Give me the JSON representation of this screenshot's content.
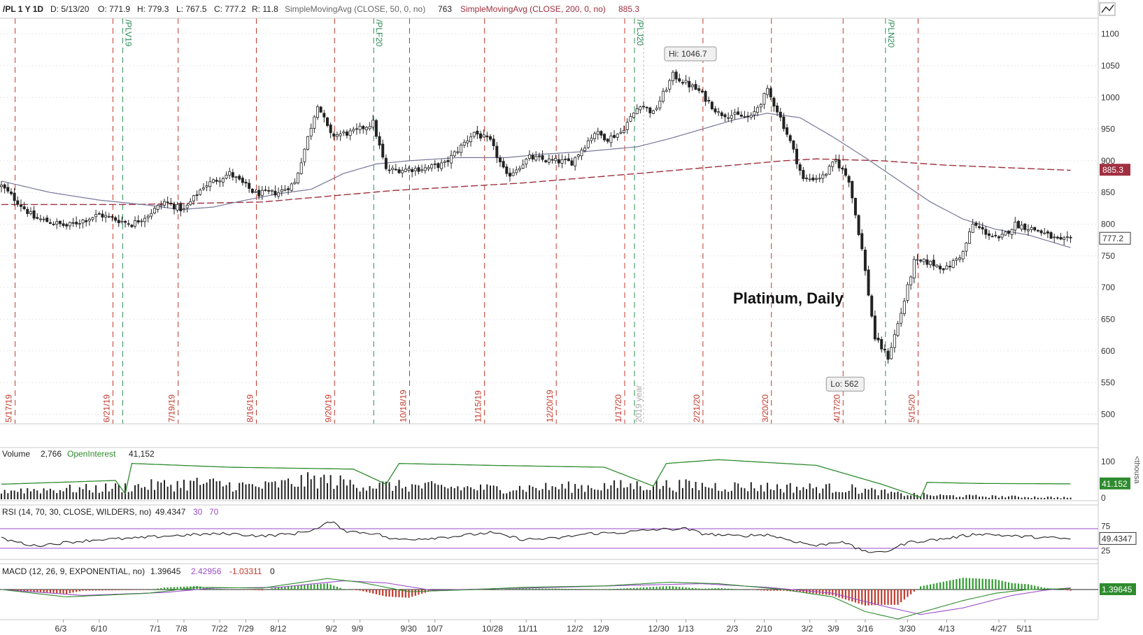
{
  "header": {
    "symbol": "/PL 1 Y 1D",
    "date": "D: 5/13/20",
    "open": "O: 771.9",
    "high": "H: 779.3",
    "low": "L: 767.5",
    "close": "C: 777.2",
    "range": "R: 11.8",
    "sma50_label": "SimpleMovingAvg (CLOSE, 50, 0, no)",
    "sma50_value": "763",
    "sma200_label": "SimpleMovingAvg (CLOSE, 200, 0, no)",
    "sma200_value": "885.3"
  },
  "volume_panel": {
    "label": "Volume",
    "value": "2,766",
    "oi_label": "OpenInterest",
    "oi_value": "41,152",
    "axis_100": "100",
    "axis_0": "0",
    "right_badge": "41.152",
    "unit": "<thousa"
  },
  "rsi_panel": {
    "label": "RSI (14, 70, 30, CLOSE, WILDERS, no)",
    "value": "49.4347",
    "lower": "30",
    "upper": "70",
    "axis_75": "75",
    "axis_25": "25",
    "badge": "49.4347"
  },
  "macd_panel": {
    "label": "MACD (12, 26, 9, EXPONENTIAL, no)",
    "value": "1.39645",
    "avg": "2.42956",
    "diff": "-1.03311",
    "zero": "0",
    "badge": "1.39645"
  },
  "chart_data": {
    "type": "candlestick",
    "title": "Platinum, Daily",
    "ylim": [
      485,
      1125
    ],
    "yticks": [
      500,
      550,
      600,
      650,
      700,
      750,
      800,
      850,
      900,
      950,
      1000,
      1050,
      1100
    ],
    "xticks": [
      "6/3",
      "6/10",
      "7/1",
      "7/8",
      "7/22",
      "7/29",
      "8/12",
      "9/2",
      "9/9",
      "9/30",
      "10/7",
      "10/28",
      "11/11",
      "12/2",
      "12/9",
      "12/30",
      "1/13",
      "2/3",
      "2/10",
      "3/2",
      "3/9",
      "3/16",
      "3/30",
      "4/13",
      "4/27",
      "5/11"
    ],
    "expirations": [
      "5/17/19",
      "6/21/19",
      "7/19/19",
      "8/16/19",
      "9/20/19",
      "10/18/19",
      "11/15/19",
      "12/20/19",
      "1/17/20",
      "2/21/20",
      "3/20/20",
      "4/17/20",
      "5/15/20"
    ],
    "rolls": [
      "/PLV19",
      "/PLF20",
      "/PLJ20",
      "/PLN20"
    ],
    "year_marker": "2019 year",
    "hi_label": "Hi: 1046.7",
    "lo_label": "Lo: 562",
    "last_price": "777.2",
    "sma200_badge": "885.3",
    "anchors": [
      [
        0,
        860
      ],
      [
        10,
        810
      ],
      [
        20,
        797
      ],
      [
        30,
        815
      ],
      [
        40,
        800
      ],
      [
        45,
        815
      ],
      [
        50,
        835
      ],
      [
        56,
        822
      ],
      [
        62,
        860
      ],
      [
        70,
        880
      ],
      [
        78,
        848
      ],
      [
        85,
        850
      ],
      [
        90,
        865
      ],
      [
        97,
        990
      ],
      [
        101,
        940
      ],
      [
        108,
        945
      ],
      [
        114,
        960
      ],
      [
        118,
        885
      ],
      [
        130,
        888
      ],
      [
        136,
        895
      ],
      [
        145,
        945
      ],
      [
        150,
        930
      ],
      [
        155,
        875
      ],
      [
        162,
        905
      ],
      [
        168,
        900
      ],
      [
        175,
        898
      ],
      [
        182,
        945
      ],
      [
        186,
        935
      ],
      [
        190,
        945
      ],
      [
        196,
        990
      ],
      [
        200,
        975
      ],
      [
        206,
        1035
      ],
      [
        214,
        1010
      ],
      [
        220,
        975
      ],
      [
        230,
        968
      ],
      [
        235,
        1010
      ],
      [
        238,
        980
      ],
      [
        242,
        930
      ],
      [
        246,
        870
      ],
      [
        252,
        875
      ],
      [
        256,
        900
      ],
      [
        260,
        870
      ],
      [
        264,
        760
      ],
      [
        268,
        620
      ],
      [
        272,
        590
      ],
      [
        276,
        660
      ],
      [
        280,
        740
      ],
      [
        284,
        740
      ],
      [
        290,
        730
      ],
      [
        295,
        755
      ],
      [
        298,
        800
      ],
      [
        301,
        790
      ],
      [
        306,
        775
      ],
      [
        311,
        800
      ],
      [
        318,
        790
      ],
      [
        325,
        772
      ],
      [
        328,
        777
      ]
    ],
    "sma50_anchors": [
      [
        0,
        868
      ],
      [
        15,
        850
      ],
      [
        30,
        838
      ],
      [
        45,
        830
      ],
      [
        55,
        823
      ],
      [
        65,
        827
      ],
      [
        75,
        838
      ],
      [
        85,
        848
      ],
      [
        95,
        855
      ],
      [
        105,
        880
      ],
      [
        115,
        895
      ],
      [
        125,
        900
      ],
      [
        140,
        905
      ],
      [
        155,
        905
      ],
      [
        165,
        910
      ],
      [
        180,
        915
      ],
      [
        195,
        922
      ],
      [
        205,
        935
      ],
      [
        215,
        950
      ],
      [
        225,
        965
      ],
      [
        235,
        975
      ],
      [
        245,
        968
      ],
      [
        255,
        938
      ],
      [
        265,
        905
      ],
      [
        275,
        870
      ],
      [
        285,
        835
      ],
      [
        295,
        808
      ],
      [
        305,
        792
      ],
      [
        315,
        783
      ],
      [
        328,
        763
      ]
    ],
    "sma200_anchors": [
      [
        0,
        831
      ],
      [
        40,
        831
      ],
      [
        80,
        835
      ],
      [
        120,
        853
      ],
      [
        160,
        865
      ],
      [
        200,
        882
      ],
      [
        220,
        891
      ],
      [
        240,
        900
      ],
      [
        250,
        903
      ],
      [
        270,
        900
      ],
      [
        290,
        893
      ],
      [
        328,
        885
      ]
    ],
    "volume_anchors": [
      [
        0,
        25
      ],
      [
        30,
        30
      ],
      [
        60,
        45
      ],
      [
        80,
        35
      ],
      [
        97,
        55
      ],
      [
        110,
        40
      ],
      [
        130,
        35
      ],
      [
        150,
        30
      ],
      [
        180,
        35
      ],
      [
        200,
        40
      ],
      [
        230,
        35
      ],
      [
        260,
        30
      ],
      [
        275,
        15
      ],
      [
        290,
        10
      ],
      [
        328,
        5
      ]
    ],
    "oi_anchors": [
      [
        0,
        40
      ],
      [
        35,
        50
      ],
      [
        38,
        15
      ],
      [
        40,
        95
      ],
      [
        70,
        85
      ],
      [
        108,
        80
      ],
      [
        118,
        40
      ],
      [
        122,
        95
      ],
      [
        150,
        90
      ],
      [
        185,
        85
      ],
      [
        200,
        35
      ],
      [
        204,
        95
      ],
      [
        220,
        105
      ],
      [
        250,
        90
      ],
      [
        270,
        40
      ],
      [
        282,
        5
      ],
      [
        284,
        45
      ],
      [
        300,
        42
      ],
      [
        328,
        41
      ]
    ],
    "rsi_anchors": [
      [
        0,
        50
      ],
      [
        10,
        35
      ],
      [
        20,
        42
      ],
      [
        30,
        48
      ],
      [
        40,
        50
      ],
      [
        50,
        55
      ],
      [
        60,
        58
      ],
      [
        70,
        60
      ],
      [
        80,
        55
      ],
      [
        90,
        60
      ],
      [
        97,
        70
      ],
      [
        101,
        85
      ],
      [
        106,
        65
      ],
      [
        115,
        60
      ],
      [
        120,
        48
      ],
      [
        130,
        50
      ],
      [
        140,
        55
      ],
      [
        150,
        62
      ],
      [
        160,
        48
      ],
      [
        170,
        50
      ],
      [
        180,
        60
      ],
      [
        190,
        62
      ],
      [
        200,
        68
      ],
      [
        210,
        70
      ],
      [
        215,
        60
      ],
      [
        225,
        55
      ],
      [
        235,
        58
      ],
      [
        243,
        45
      ],
      [
        250,
        35
      ],
      [
        258,
        45
      ],
      [
        262,
        30
      ],
      [
        268,
        20
      ],
      [
        272,
        25
      ],
      [
        278,
        42
      ],
      [
        290,
        50
      ],
      [
        300,
        60
      ],
      [
        310,
        55
      ],
      [
        320,
        52
      ],
      [
        328,
        49
      ]
    ],
    "macd_anchors": [
      [
        0,
        0
      ],
      [
        20,
        -10
      ],
      [
        45,
        -5
      ],
      [
        60,
        3
      ],
      [
        80,
        2
      ],
      [
        100,
        15
      ],
      [
        110,
        10
      ],
      [
        125,
        -3
      ],
      [
        145,
        0
      ],
      [
        160,
        3
      ],
      [
        185,
        5
      ],
      [
        205,
        10
      ],
      [
        220,
        8
      ],
      [
        240,
        0
      ],
      [
        255,
        -10
      ],
      [
        265,
        -30
      ],
      [
        275,
        -40
      ],
      [
        283,
        -30
      ],
      [
        295,
        -15
      ],
      [
        305,
        -5
      ],
      [
        315,
        0
      ],
      [
        328,
        1.4
      ]
    ],
    "signal_anchors": [
      [
        0,
        0
      ],
      [
        25,
        -8
      ],
      [
        50,
        -4
      ],
      [
        65,
        2
      ],
      [
        85,
        3
      ],
      [
        105,
        12
      ],
      [
        118,
        9
      ],
      [
        132,
        -1
      ],
      [
        150,
        1
      ],
      [
        170,
        3
      ],
      [
        195,
        6
      ],
      [
        215,
        8
      ],
      [
        235,
        3
      ],
      [
        255,
        -5
      ],
      [
        270,
        -22
      ],
      [
        282,
        -34
      ],
      [
        295,
        -25
      ],
      [
        310,
        -8
      ],
      [
        320,
        -1
      ],
      [
        328,
        2.4
      ]
    ]
  }
}
